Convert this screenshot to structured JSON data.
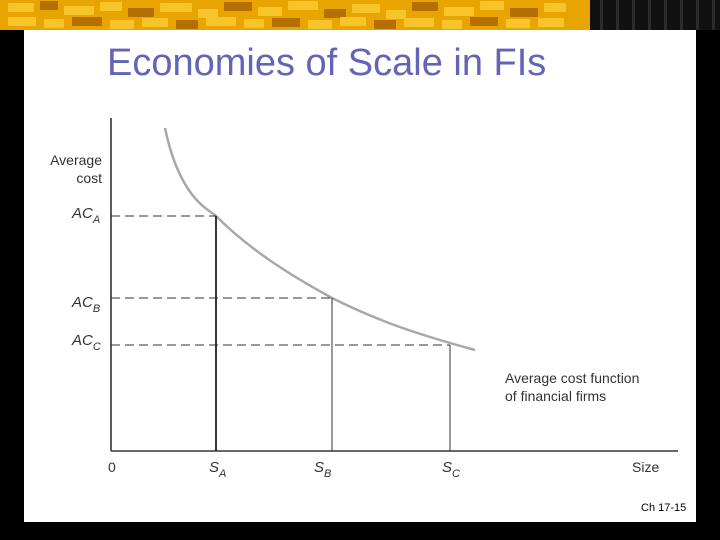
{
  "title": "Economies of Scale in FIs",
  "axes": {
    "y_label_line1": "Average",
    "y_label_line2": "cost",
    "origin": "0",
    "x_label": "Size"
  },
  "cost_levels": [
    {
      "base": "AC",
      "sub": "A"
    },
    {
      "base": "AC",
      "sub": "B"
    },
    {
      "base": "AC",
      "sub": "C"
    }
  ],
  "size_levels": [
    {
      "base": "S",
      "sub": "A"
    },
    {
      "base": "S",
      "sub": "B"
    },
    {
      "base": "S",
      "sub": "C"
    }
  ],
  "curve_label_line1": "Average cost function",
  "curve_label_line2": "of financial firms",
  "footer": "Ch 17-15",
  "colors": {
    "title": "#6264b8",
    "curve": "#a8a8a8",
    "axis": "#333333"
  }
}
